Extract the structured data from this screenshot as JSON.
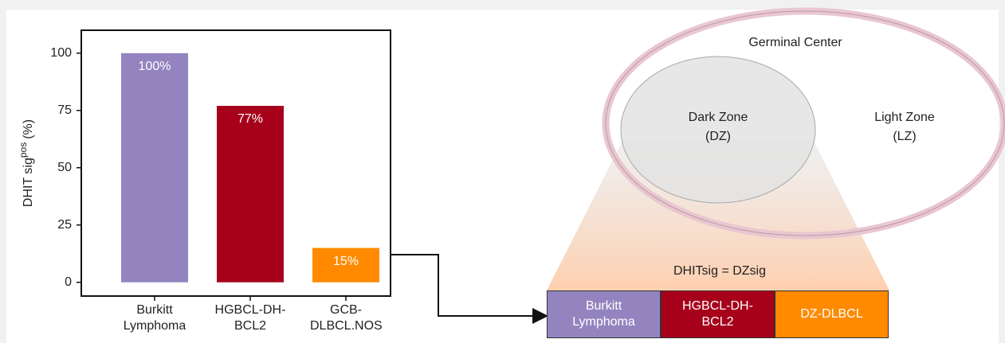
{
  "chart_data": {
    "type": "bar",
    "y_label": [
      "DHIT sig",
      "pos",
      "(%)"
    ],
    "categories": [
      "Burkitt Lymphoma",
      "HGBCL-DH-BCL2",
      "GCB-DLBCL.NOS"
    ],
    "values": [
      100,
      77,
      15
    ],
    "value_labels": [
      "100%",
      "77%",
      "15%"
    ],
    "colors": [
      "#9384bf",
      "#a6001b",
      "#ff8a00"
    ],
    "ylim": [
      -6,
      110
    ],
    "yticks": [
      0,
      25,
      50,
      75,
      100
    ],
    "grid": false
  },
  "diagram": {
    "outer": "Germinal Center",
    "dark_zone": [
      "Dark Zone",
      "(DZ)"
    ],
    "light_zone": [
      "Light Zone",
      "(LZ)"
    ],
    "equation": "DHITsig = DZsig",
    "cells": [
      {
        "label": "Burkitt Lymphoma",
        "color": "#9384bf"
      },
      {
        "label": "HGBCL-DH-BCL2",
        "color": "#a6001b"
      },
      {
        "label": "DZ-DLBCL",
        "color": "#ff8a00"
      }
    ]
  }
}
